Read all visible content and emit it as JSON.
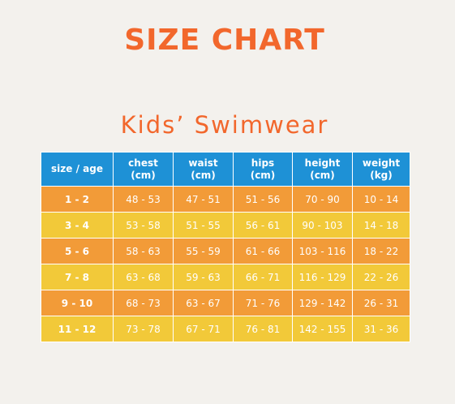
{
  "page": {
    "title": "SIZE CHART",
    "subtitle": "Kids’ Swimwear"
  },
  "colors": {
    "title": "#f2672c",
    "header_bg": "#1e91d6",
    "row_orange": "#f29b38",
    "row_yellow": "#f2c939",
    "background": "#f3f1ed"
  },
  "table": {
    "headers": [
      {
        "line1": "size / age",
        "line2": ""
      },
      {
        "line1": "chest",
        "line2": "(cm)"
      },
      {
        "line1": "waist",
        "line2": "(cm)"
      },
      {
        "line1": "hips",
        "line2": "(cm)"
      },
      {
        "line1": "height",
        "line2": "(cm)"
      },
      {
        "line1": "weight",
        "line2": "(kg)"
      }
    ],
    "rows": [
      {
        "size": "1 - 2",
        "chest": "48 - 53",
        "waist": "47 - 51",
        "hips": "51 - 56",
        "height": "70 - 90",
        "weight": "10 - 14"
      },
      {
        "size": "3 - 4",
        "chest": "53 - 58",
        "waist": "51 - 55",
        "hips": "56 - 61",
        "height": "90 - 103",
        "weight": "14 - 18"
      },
      {
        "size": "5 - 6",
        "chest": "58 - 63",
        "waist": "55 - 59",
        "hips": "61 - 66",
        "height": "103 - 116",
        "weight": "18 - 22"
      },
      {
        "size": "7 - 8",
        "chest": "63 - 68",
        "waist": "59 - 63",
        "hips": "66 - 71",
        "height": "116 - 129",
        "weight": "22 - 26"
      },
      {
        "size": "9 - 10",
        "chest": "68 - 73",
        "waist": "63 - 67",
        "hips": "71 - 76",
        "height": "129 - 142",
        "weight": "26 - 31"
      },
      {
        "size": "11 - 12",
        "chest": "73 - 78",
        "waist": "67 - 71",
        "hips": "76 - 81",
        "height": "142 - 155",
        "weight": "31 - 36"
      }
    ]
  }
}
